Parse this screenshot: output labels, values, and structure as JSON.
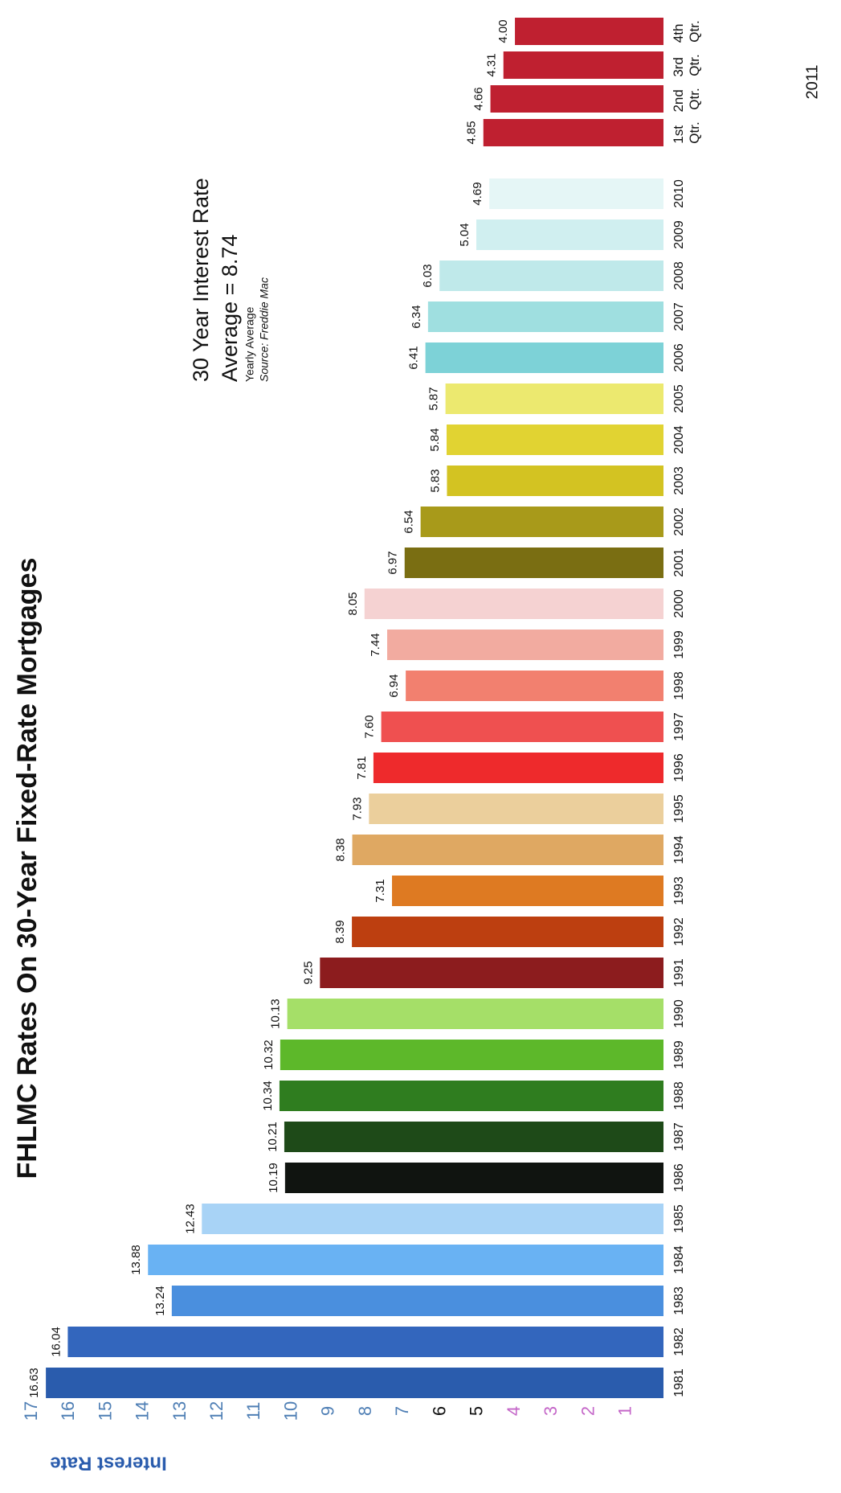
{
  "chart_data": {
    "type": "bar",
    "title": "FHLMC Rates On 30-Year Fixed-Rate Mortgages",
    "y_label": "Interest Rate",
    "annotation": {
      "heading": "30 Year Interest Rate",
      "average": "Average = 8.74",
      "note": "Yearly Average",
      "source": "Source: Freddie Mac"
    },
    "group_label": "2011",
    "categories": [
      "1981",
      "1982",
      "1983",
      "1984",
      "1985",
      "1986",
      "1987",
      "1988",
      "1989",
      "1990",
      "1991",
      "1992",
      "1993",
      "1994",
      "1995",
      "1996",
      "1997",
      "1998",
      "1999",
      "2000",
      "2001",
      "2002",
      "2003",
      "2004",
      "2005",
      "2006",
      "2007",
      "2008",
      "2009",
      "2010",
      "1st Qtr.",
      "2nd Qtr.",
      "3rd Qtr.",
      "4th Qtr."
    ],
    "values": [
      16.63,
      16.04,
      13.24,
      13.88,
      12.43,
      10.19,
      10.21,
      10.34,
      10.32,
      10.13,
      9.25,
      8.39,
      7.31,
      8.38,
      7.93,
      7.81,
      7.6,
      6.94,
      7.44,
      8.05,
      6.97,
      6.54,
      5.83,
      5.84,
      5.87,
      6.41,
      6.34,
      6.03,
      5.04,
      4.69,
      4.85,
      4.66,
      4.31,
      4.0
    ],
    "value_labels": [
      "16.63",
      "16.04",
      "13.24",
      "13.88",
      "12.43",
      "10.19",
      "10.21",
      "10.34",
      "10.32",
      "10.13",
      "9.25",
      "8.39",
      "7.31",
      "8.38",
      "7.93",
      "7.81",
      "7.60",
      "6.94",
      "7.44",
      "8.05",
      "6.97",
      "6.54",
      "5.83",
      "5.84",
      "5.87",
      "6.41",
      "6.34",
      "6.03",
      "5.04",
      "4.69",
      "4.85",
      "4.66",
      "4.31",
      "4.00"
    ],
    "colors": [
      "#2a5cad",
      "#3366bd",
      "#4a8fde",
      "#69b2f3",
      "#a8d3f6",
      "#101410",
      "#1e4a18",
      "#2f7d1f",
      "#5db82a",
      "#a5df68",
      "#8c1c1e",
      "#bd3f10",
      "#de7a22",
      "#dfa862",
      "#ebcf9c",
      "#ee2a2c",
      "#ef5050",
      "#f2806f",
      "#f2aba0",
      "#f5d2d2",
      "#7a6e12",
      "#a89a1a",
      "#d3c322",
      "#e1d332",
      "#ece96f",
      "#7dd2d7",
      "#9fdfe0",
      "#bfe9ea",
      "#d0eff0",
      "#e5f6f6",
      "#bf2030",
      "#bf2030",
      "#bf2030",
      "#bf2030"
    ],
    "ylim": [
      0,
      17
    ],
    "yticks": [
      1,
      2,
      3,
      4,
      5,
      6,
      7,
      8,
      9,
      10,
      11,
      12,
      13,
      14,
      15,
      16,
      17
    ],
    "ytick_colors": [
      "#c466c8",
      "#c466c8",
      "#c466c8",
      "#c466c8",
      "#111111",
      "#111111",
      "#4f7fb5",
      "#4f7fb5",
      "#4f7fb5",
      "#4f7fb5",
      "#4f7fb5",
      "#4f7fb5",
      "#4f7fb5",
      "#4f7fb5",
      "#4f7fb5",
      "#4f7fb5",
      "#4f7fb5"
    ],
    "grid": false
  }
}
